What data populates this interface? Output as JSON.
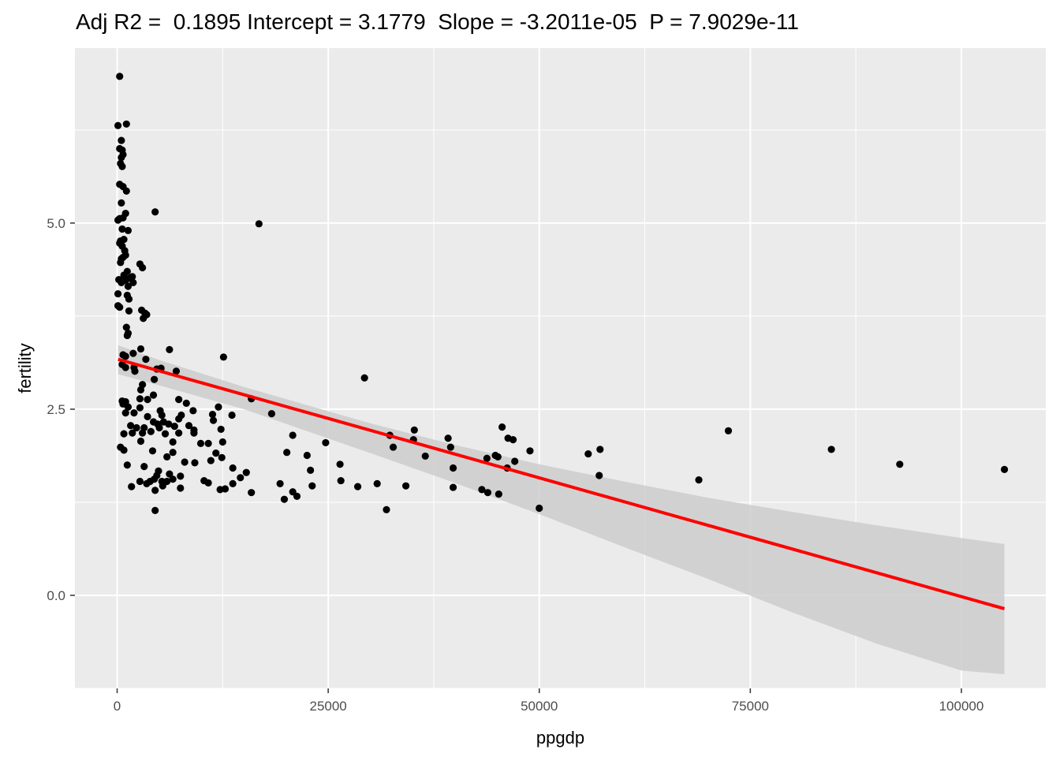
{
  "chart_data": {
    "type": "scatter",
    "title": "Adj R2 =  0.1895 Intercept = 3.1779  Slope = -3.2011e-05  P = 7.9029e-11",
    "xlabel": "ppgdp",
    "ylabel": "fertility",
    "xlim": [
      -5000,
      110000
    ],
    "ylim": [
      -1.25,
      7.35
    ],
    "x_ticks": [
      0,
      25000,
      50000,
      75000,
      100000
    ],
    "x_tick_labels": [
      "0",
      "25000",
      "50000",
      "75000",
      "100000"
    ],
    "y_ticks": [
      0,
      2.5,
      5
    ],
    "y_tick_labels": [
      "0.0",
      "2.5",
      "5.0"
    ],
    "grid": true,
    "background": "#ebebeb",
    "point_color": "#000000",
    "fit_color": "#ff0000",
    "band_color": "#cccccc",
    "fit_line": {
      "x": [
        115,
        105100
      ],
      "y": [
        3.17,
        -0.18
      ]
    },
    "confidence_band": {
      "x": [
        115,
        5000,
        15000,
        30000,
        40000,
        50000,
        60000,
        70000,
        80000,
        90000,
        100000,
        105100
      ],
      "upper": [
        3.36,
        3.16,
        2.8,
        2.31,
        2.02,
        1.76,
        1.53,
        1.31,
        1.12,
        0.94,
        0.77,
        0.69
      ],
      "lower": [
        2.97,
        2.82,
        2.5,
        1.91,
        1.51,
        1.09,
        0.65,
        0.22,
        -0.23,
        -0.65,
        -1.01,
        -1.06
      ]
    },
    "points": [
      [
        300,
        6.97
      ],
      [
        100,
        6.31
      ],
      [
        1100,
        6.33
      ],
      [
        500,
        6.11
      ],
      [
        300,
        6.0
      ],
      [
        600,
        5.98
      ],
      [
        700,
        5.92
      ],
      [
        500,
        5.88
      ],
      [
        400,
        5.8
      ],
      [
        600,
        5.76
      ],
      [
        300,
        5.52
      ],
      [
        700,
        5.49
      ],
      [
        1100,
        5.43
      ],
      [
        500,
        5.27
      ],
      [
        1000,
        5.13
      ],
      [
        4500,
        5.15
      ],
      [
        16800,
        4.99
      ],
      [
        300,
        5.06
      ],
      [
        700,
        5.07
      ],
      [
        100,
        5.04
      ],
      [
        600,
        4.92
      ],
      [
        1300,
        4.9
      ],
      [
        400,
        4.76
      ],
      [
        800,
        4.78
      ],
      [
        300,
        4.73
      ],
      [
        600,
        4.69
      ],
      [
        900,
        4.63
      ],
      [
        1000,
        4.57
      ],
      [
        700,
        4.54
      ],
      [
        400,
        4.47
      ],
      [
        500,
        4.52
      ],
      [
        2700,
        4.45
      ],
      [
        3000,
        4.4
      ],
      [
        1200,
        4.35
      ],
      [
        800,
        4.3
      ],
      [
        200,
        4.24
      ],
      [
        500,
        4.2
      ],
      [
        1000,
        4.23
      ],
      [
        1500,
        4.26
      ],
      [
        1800,
        4.28
      ],
      [
        1900,
        4.2
      ],
      [
        1300,
        4.15
      ],
      [
        100,
        4.05
      ],
      [
        1200,
        4.03
      ],
      [
        1400,
        3.98
      ],
      [
        300,
        3.87
      ],
      [
        100,
        3.89
      ],
      [
        1400,
        3.82
      ],
      [
        2900,
        3.83
      ],
      [
        3300,
        3.79
      ],
      [
        3500,
        3.77
      ],
      [
        3100,
        3.72
      ],
      [
        1100,
        3.6
      ],
      [
        1300,
        3.52
      ],
      [
        1200,
        3.49
      ],
      [
        2800,
        3.31
      ],
      [
        6200,
        3.3
      ],
      [
        1900,
        3.25
      ],
      [
        700,
        3.23
      ],
      [
        1000,
        3.21
      ],
      [
        12600,
        3.2
      ],
      [
        3400,
        3.17
      ],
      [
        5200,
        3.05
      ],
      [
        600,
        3.1
      ],
      [
        1000,
        3.06
      ],
      [
        2000,
        3.06
      ],
      [
        2100,
        3.01
      ],
      [
        7000,
        3.01
      ],
      [
        4700,
        3.04
      ],
      [
        29300,
        2.92
      ],
      [
        4400,
        2.9
      ],
      [
        3000,
        2.83
      ],
      [
        2800,
        2.76
      ],
      [
        4300,
        2.69
      ],
      [
        600,
        2.61
      ],
      [
        1000,
        2.6
      ],
      [
        2700,
        2.64
      ],
      [
        3600,
        2.63
      ],
      [
        7300,
        2.63
      ],
      [
        15900,
        2.64
      ],
      [
        8200,
        2.58
      ],
      [
        12000,
        2.53
      ],
      [
        700,
        2.57
      ],
      [
        1300,
        2.53
      ],
      [
        2700,
        2.52
      ],
      [
        5100,
        2.48
      ],
      [
        9000,
        2.48
      ],
      [
        1000,
        2.45
      ],
      [
        2000,
        2.45
      ],
      [
        5300,
        2.42
      ],
      [
        7600,
        2.42
      ],
      [
        7300,
        2.37
      ],
      [
        18300,
        2.44
      ],
      [
        11300,
        2.43
      ],
      [
        13600,
        2.42
      ],
      [
        11400,
        2.35
      ],
      [
        3600,
        2.4
      ],
      [
        4300,
        2.33
      ],
      [
        4800,
        2.3
      ],
      [
        5500,
        2.33
      ],
      [
        6100,
        2.3
      ],
      [
        6800,
        2.27
      ],
      [
        1600,
        2.28
      ],
      [
        2300,
        2.25
      ],
      [
        3200,
        2.25
      ],
      [
        5000,
        2.25
      ],
      [
        8500,
        2.28
      ],
      [
        9100,
        2.22
      ],
      [
        12300,
        2.23
      ],
      [
        800,
        2.17
      ],
      [
        1800,
        2.18
      ],
      [
        3000,
        2.18
      ],
      [
        4000,
        2.2
      ],
      [
        5700,
        2.17
      ],
      [
        7300,
        2.18
      ],
      [
        9100,
        2.18
      ],
      [
        20800,
        2.15
      ],
      [
        32300,
        2.15
      ],
      [
        39200,
        2.11
      ],
      [
        46300,
        2.11
      ],
      [
        35200,
        2.22
      ],
      [
        45600,
        2.26
      ],
      [
        72400,
        2.21
      ],
      [
        46900,
        2.09
      ],
      [
        24700,
        2.05
      ],
      [
        12500,
        2.06
      ],
      [
        2800,
        2.07
      ],
      [
        6600,
        2.06
      ],
      [
        9900,
        2.04
      ],
      [
        10800,
        2.04
      ],
      [
        35100,
        2.09
      ],
      [
        39500,
        1.99
      ],
      [
        32700,
        1.99
      ],
      [
        48900,
        1.94
      ],
      [
        57200,
        1.96
      ],
      [
        84600,
        1.96
      ],
      [
        400,
        1.99
      ],
      [
        800,
        1.95
      ],
      [
        4200,
        1.94
      ],
      [
        6600,
        1.92
      ],
      [
        20100,
        1.92
      ],
      [
        22500,
        1.88
      ],
      [
        11700,
        1.91
      ],
      [
        44800,
        1.88
      ],
      [
        55800,
        1.9
      ],
      [
        36500,
        1.87
      ],
      [
        45100,
        1.86
      ],
      [
        43800,
        1.84
      ],
      [
        5900,
        1.86
      ],
      [
        9200,
        1.78
      ],
      [
        11100,
        1.81
      ],
      [
        12400,
        1.85
      ],
      [
        26400,
        1.76
      ],
      [
        47100,
        1.8
      ],
      [
        92700,
        1.76
      ],
      [
        1200,
        1.75
      ],
      [
        3200,
        1.73
      ],
      [
        8000,
        1.79
      ],
      [
        13700,
        1.71
      ],
      [
        22900,
        1.68
      ],
      [
        39800,
        1.71
      ],
      [
        46200,
        1.71
      ],
      [
        4900,
        1.67
      ],
      [
        6200,
        1.63
      ],
      [
        7500,
        1.6
      ],
      [
        15300,
        1.65
      ],
      [
        14600,
        1.58
      ],
      [
        105100,
        1.69
      ],
      [
        57100,
        1.61
      ],
      [
        4700,
        1.61
      ],
      [
        2700,
        1.53
      ],
      [
        3900,
        1.53
      ],
      [
        5300,
        1.53
      ],
      [
        5900,
        1.53
      ],
      [
        4400,
        1.56
      ],
      [
        10300,
        1.54
      ],
      [
        10800,
        1.51
      ],
      [
        13700,
        1.5
      ],
      [
        19300,
        1.5
      ],
      [
        26500,
        1.54
      ],
      [
        30800,
        1.5
      ],
      [
        34200,
        1.47
      ],
      [
        39800,
        1.45
      ],
      [
        28500,
        1.46
      ],
      [
        68900,
        1.55
      ],
      [
        43200,
        1.42
      ],
      [
        45200,
        1.36
      ],
      [
        5400,
        1.47
      ],
      [
        3500,
        1.5
      ],
      [
        4500,
        1.41
      ],
      [
        1700,
        1.46
      ],
      [
        6600,
        1.56
      ],
      [
        7500,
        1.44
      ],
      [
        12200,
        1.42
      ],
      [
        12800,
        1.43
      ],
      [
        15900,
        1.38
      ],
      [
        20800,
        1.39
      ],
      [
        21300,
        1.33
      ],
      [
        23100,
        1.47
      ],
      [
        19800,
        1.29
      ],
      [
        43900,
        1.38
      ],
      [
        31900,
        1.15
      ],
      [
        50000,
        1.17
      ],
      [
        4500,
        1.14
      ]
    ]
  }
}
